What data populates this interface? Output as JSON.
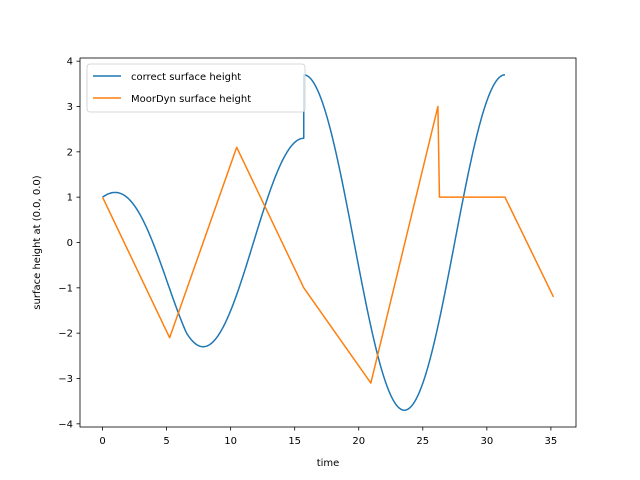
{
  "chart_data": {
    "type": "line",
    "title": "",
    "xlabel": "time",
    "ylabel": "surface height at (0.0, 0.0)",
    "xlim": [
      -1.76,
      36.96
    ],
    "ylim": [
      -4.07,
      4.07
    ],
    "xticks": [
      0,
      5,
      10,
      15,
      20,
      25,
      30,
      35
    ],
    "yticks": [
      -4,
      -3,
      -2,
      -1,
      0,
      1,
      2,
      3,
      4
    ],
    "grid": false,
    "legend_position": "upper-left",
    "series": [
      {
        "name": "correct surface height",
        "color": "#1f77b4",
        "segments": [
          {
            "t0": 0,
            "t1": 7.854,
            "amp": 2.3,
            "period": 15.708,
            "offset": -1.3
          },
          {
            "t0": 7.854,
            "t1": 15.708,
            "amp": 2.3,
            "period": 15.708,
            "offset": 0
          },
          {
            "t0": 15.708,
            "t1": 23.562,
            "amp": 3.7,
            "period": 15.708,
            "offset": 0
          },
          {
            "t0": 23.562,
            "t1": 31.416,
            "amp": 3.7,
            "period": 15.708,
            "offset": 0
          }
        ]
      },
      {
        "name": "MoorDyn surface height",
        "color": "#ff7f0e",
        "points": [
          [
            0,
            1.0
          ],
          [
            5.236,
            -2.1
          ],
          [
            10.472,
            2.1
          ],
          [
            15.708,
            -1.0
          ],
          [
            20.944,
            -3.1
          ],
          [
            26.18,
            3.0
          ],
          [
            26.3,
            1.0
          ],
          [
            31.416,
            1.0
          ],
          [
            35.2,
            -1.2
          ]
        ]
      }
    ]
  }
}
